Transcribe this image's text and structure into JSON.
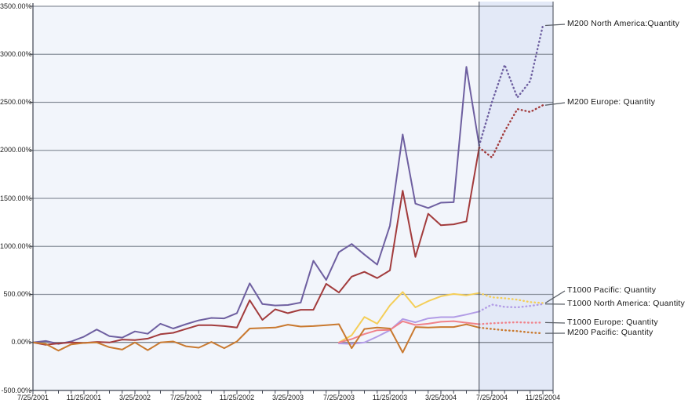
{
  "chart_data": {
    "type": "line",
    "title": "",
    "x_axis": {
      "start_date": "7/25/2001",
      "interval": "monthly",
      "total_points": 41,
      "tick_label_every_n_points": 4,
      "tick_labels": [
        "7/25/2001",
        "11/25/2001",
        "3/25/2002",
        "7/25/2002",
        "11/25/2002",
        "3/25/2003",
        "7/25/2003",
        "11/25/2003",
        "3/25/2004",
        "7/25/2004",
        "11/25/2004"
      ]
    },
    "y_axis": {
      "unit": "%",
      "min": -500,
      "max": 3500,
      "step": 500,
      "tick_labels": [
        "3500.00%",
        "3000.00%",
        "2500.00%",
        "2000.00%",
        "1500.00%",
        "1000.00%",
        "500.00%",
        "0.00%",
        "-500.00%"
      ]
    },
    "forecast": {
      "start_index": 35,
      "style": "dotted lines over shaded region"
    },
    "series": [
      {
        "name": "M200 North America:Quantity",
        "color": "#6E5FA0",
        "values": [
          0,
          15,
          -15,
          10,
          60,
          135,
          65,
          50,
          115,
          90,
          195,
          145,
          190,
          230,
          255,
          250,
          305,
          615,
          400,
          385,
          390,
          415,
          850,
          650,
          940,
          1025,
          915,
          810,
          1215,
          2165,
          1445,
          1400,
          1455,
          1460,
          2870,
          2050,
          2500,
          2890,
          2550,
          2720,
          3300
        ]
      },
      {
        "name": "M200 Europe: Quantity",
        "color": "#A23B3C",
        "values": [
          0,
          -25,
          -10,
          0,
          -5,
          5,
          0,
          30,
          25,
          40,
          85,
          100,
          140,
          180,
          180,
          170,
          155,
          440,
          235,
          345,
          305,
          340,
          340,
          610,
          520,
          685,
          735,
          670,
          750,
          1580,
          890,
          1340,
          1220,
          1230,
          1260,
          2030,
          1925,
          2200,
          2430,
          2400,
          2470
        ]
      },
      {
        "name": "T1000 Pacific: Quantity",
        "color": "#F4CE58",
        "values": [
          null,
          null,
          null,
          null,
          null,
          null,
          null,
          null,
          null,
          null,
          null,
          null,
          null,
          null,
          null,
          null,
          null,
          null,
          null,
          null,
          null,
          null,
          null,
          null,
          0,
          75,
          265,
          195,
          385,
          525,
          365,
          430,
          480,
          505,
          490,
          515,
          470,
          460,
          445,
          420,
          410
        ]
      },
      {
        "name": "T1000 North America: Quantity",
        "color": "#B29CE6",
        "values": [
          null,
          null,
          null,
          null,
          null,
          null,
          null,
          null,
          null,
          null,
          null,
          null,
          null,
          null,
          null,
          null,
          null,
          null,
          null,
          null,
          null,
          null,
          null,
          null,
          -10,
          -15,
          0,
          60,
          127,
          244,
          209,
          250,
          263,
          263,
          290,
          322,
          395,
          370,
          365,
          380,
          400
        ]
      },
      {
        "name": "T1000 Europe: Quantity",
        "color": "#F0828A",
        "values": [
          null,
          null,
          null,
          null,
          null,
          null,
          null,
          null,
          null,
          null,
          null,
          null,
          null,
          null,
          null,
          null,
          null,
          null,
          null,
          null,
          null,
          null,
          null,
          null,
          0,
          35,
          87,
          127,
          130,
          220,
          182,
          195,
          215,
          222,
          205,
          190,
          200,
          205,
          210,
          205,
          207
        ]
      },
      {
        "name": "M200 Pacific: Quantity",
        "color": "#C9792F",
        "values": [
          0,
          -15,
          -85,
          -20,
          -5,
          0,
          -50,
          -75,
          0,
          -80,
          0,
          10,
          -40,
          -55,
          5,
          -60,
          10,
          145,
          150,
          155,
          185,
          165,
          170,
          180,
          190,
          -60,
          140,
          155,
          145,
          -105,
          160,
          155,
          160,
          160,
          188,
          155,
          140,
          127,
          118,
          103,
          95
        ]
      }
    ],
    "legend_position": "right-callouts",
    "grid": true
  },
  "colors": {
    "page_bg": "#FFFFFF",
    "plot_bg": "#F2F5FB",
    "forecast_bg": "#E3E9F7",
    "gridline": "#8A919C",
    "gridline_zero": "#747B86",
    "axis": "#3F4450",
    "connector": "#5A5F66",
    "label_text": "#1A1A1A"
  }
}
